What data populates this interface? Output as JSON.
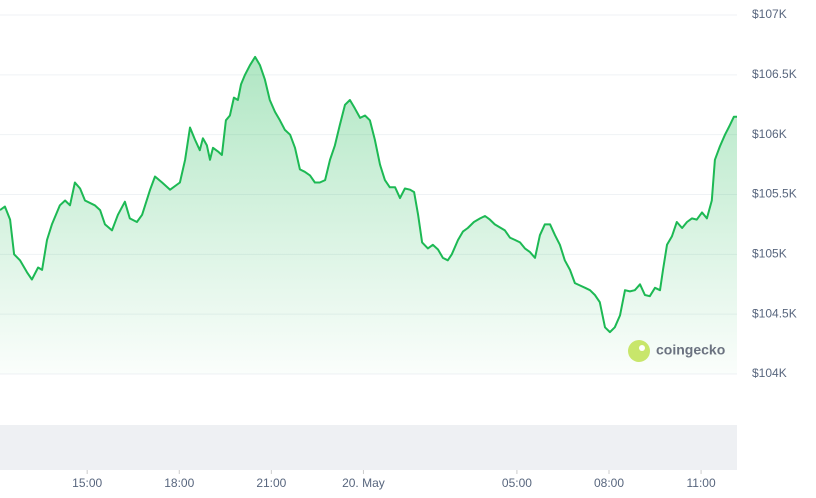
{
  "chart_data": {
    "type": "area",
    "color": "#1db954",
    "grid": true,
    "watermark": "coingecko",
    "xlim": [
      12.16,
      36.17
    ],
    "ylim": [
      104000,
      107000
    ],
    "yticks": [
      {
        "value": 104000,
        "label": "$104K"
      },
      {
        "value": 104500,
        "label": "$104.5K"
      },
      {
        "value": 105000,
        "label": "$105K"
      },
      {
        "value": 105500,
        "label": "$105.5K"
      },
      {
        "value": 106000,
        "label": "$106K"
      },
      {
        "value": 106500,
        "label": "$106.5K"
      },
      {
        "value": 107000,
        "label": "$107K"
      }
    ],
    "xticks": [
      {
        "value": 15,
        "label": "15:00"
      },
      {
        "value": 18,
        "label": "18:00"
      },
      {
        "value": 21,
        "label": "21:00"
      },
      {
        "value": 24,
        "label": "20. May"
      },
      {
        "value": 29,
        "label": "05:00"
      },
      {
        "value": 32,
        "label": "08:00"
      },
      {
        "value": 35,
        "label": "11:00"
      }
    ],
    "x": [
      12.16,
      12.32,
      12.49,
      12.62,
      12.81,
      13.04,
      13.2,
      13.4,
      13.53,
      13.69,
      13.85,
      14.11,
      14.28,
      14.44,
      14.6,
      14.77,
      14.93,
      15.25,
      15.42,
      15.58,
      15.81,
      16.0,
      16.23,
      16.39,
      16.62,
      16.79,
      17.05,
      17.21,
      17.44,
      17.7,
      18.02,
      18.19,
      18.35,
      18.51,
      18.67,
      18.77,
      18.9,
      19.0,
      19.1,
      19.26,
      19.39,
      19.52,
      19.65,
      19.78,
      19.91,
      20.01,
      20.14,
      20.3,
      20.47,
      20.63,
      20.79,
      20.95,
      21.12,
      21.28,
      21.44,
      21.61,
      21.77,
      21.93,
      22.09,
      22.26,
      22.42,
      22.58,
      22.75,
      22.91,
      23.07,
      23.23,
      23.4,
      23.56,
      23.72,
      23.89,
      24.05,
      24.21,
      24.37,
      24.54,
      24.7,
      24.86,
      25.03,
      25.19,
      25.35,
      25.52,
      25.65,
      25.78,
      25.91,
      26.1,
      26.26,
      26.43,
      26.59,
      26.75,
      26.88,
      27.08,
      27.24,
      27.4,
      27.6,
      27.8,
      27.96,
      28.12,
      28.28,
      28.61,
      28.77,
      28.94,
      29.1,
      29.26,
      29.42,
      29.59,
      29.75,
      29.91,
      30.08,
      30.24,
      30.4,
      30.56,
      30.73,
      30.89,
      31.05,
      31.22,
      31.38,
      31.54,
      31.7,
      31.87,
      32.03,
      32.19,
      32.36,
      32.52,
      32.68,
      32.84,
      33.01,
      33.17,
      33.33,
      33.5,
      33.66,
      33.76,
      33.89,
      34.05,
      34.21,
      34.38,
      34.54,
      34.7,
      34.86,
      35.03,
      35.19,
      35.35,
      35.45,
      35.61,
      35.78,
      35.94,
      36.07,
      36.17
    ],
    "values": [
      105370,
      105400,
      105290,
      105000,
      104950,
      104850,
      104790,
      104890,
      104870,
      105120,
      105250,
      105410,
      105450,
      105410,
      105600,
      105550,
      105450,
      105410,
      105370,
      105250,
      105200,
      105330,
      105440,
      105300,
      105270,
      105330,
      105540,
      105650,
      105600,
      105540,
      105600,
      105790,
      106060,
      105960,
      105870,
      105970,
      105910,
      105790,
      105890,
      105860,
      105830,
      106120,
      106160,
      106310,
      106290,
      106420,
      106500,
      106580,
      106650,
      106580,
      106460,
      106290,
      106190,
      106120,
      106040,
      106000,
      105890,
      105710,
      105690,
      105660,
      105600,
      105600,
      105620,
      105790,
      105910,
      106080,
      106250,
      106290,
      106220,
      106140,
      106160,
      106120,
      105960,
      105750,
      105620,
      105560,
      105560,
      105470,
      105550,
      105540,
      105520,
      105330,
      105100,
      105050,
      105080,
      105040,
      104970,
      104950,
      105000,
      105120,
      105190,
      105220,
      105270,
      105300,
      105320,
      105290,
      105250,
      105200,
      105140,
      105120,
      105100,
      105050,
      105020,
      104970,
      105160,
      105250,
      105250,
      105160,
      105080,
      104950,
      104870,
      104760,
      104740,
      104720,
      104700,
      104660,
      104600,
      104390,
      104350,
      104390,
      104490,
      104700,
      104690,
      104700,
      104750,
      104660,
      104650,
      104720,
      104700,
      104870,
      105080,
      105150,
      105270,
      105220,
      105270,
      105300,
      105290,
      105350,
      105300,
      105450,
      105790,
      105900,
      106000,
      106080,
      106150,
      106150
    ]
  }
}
